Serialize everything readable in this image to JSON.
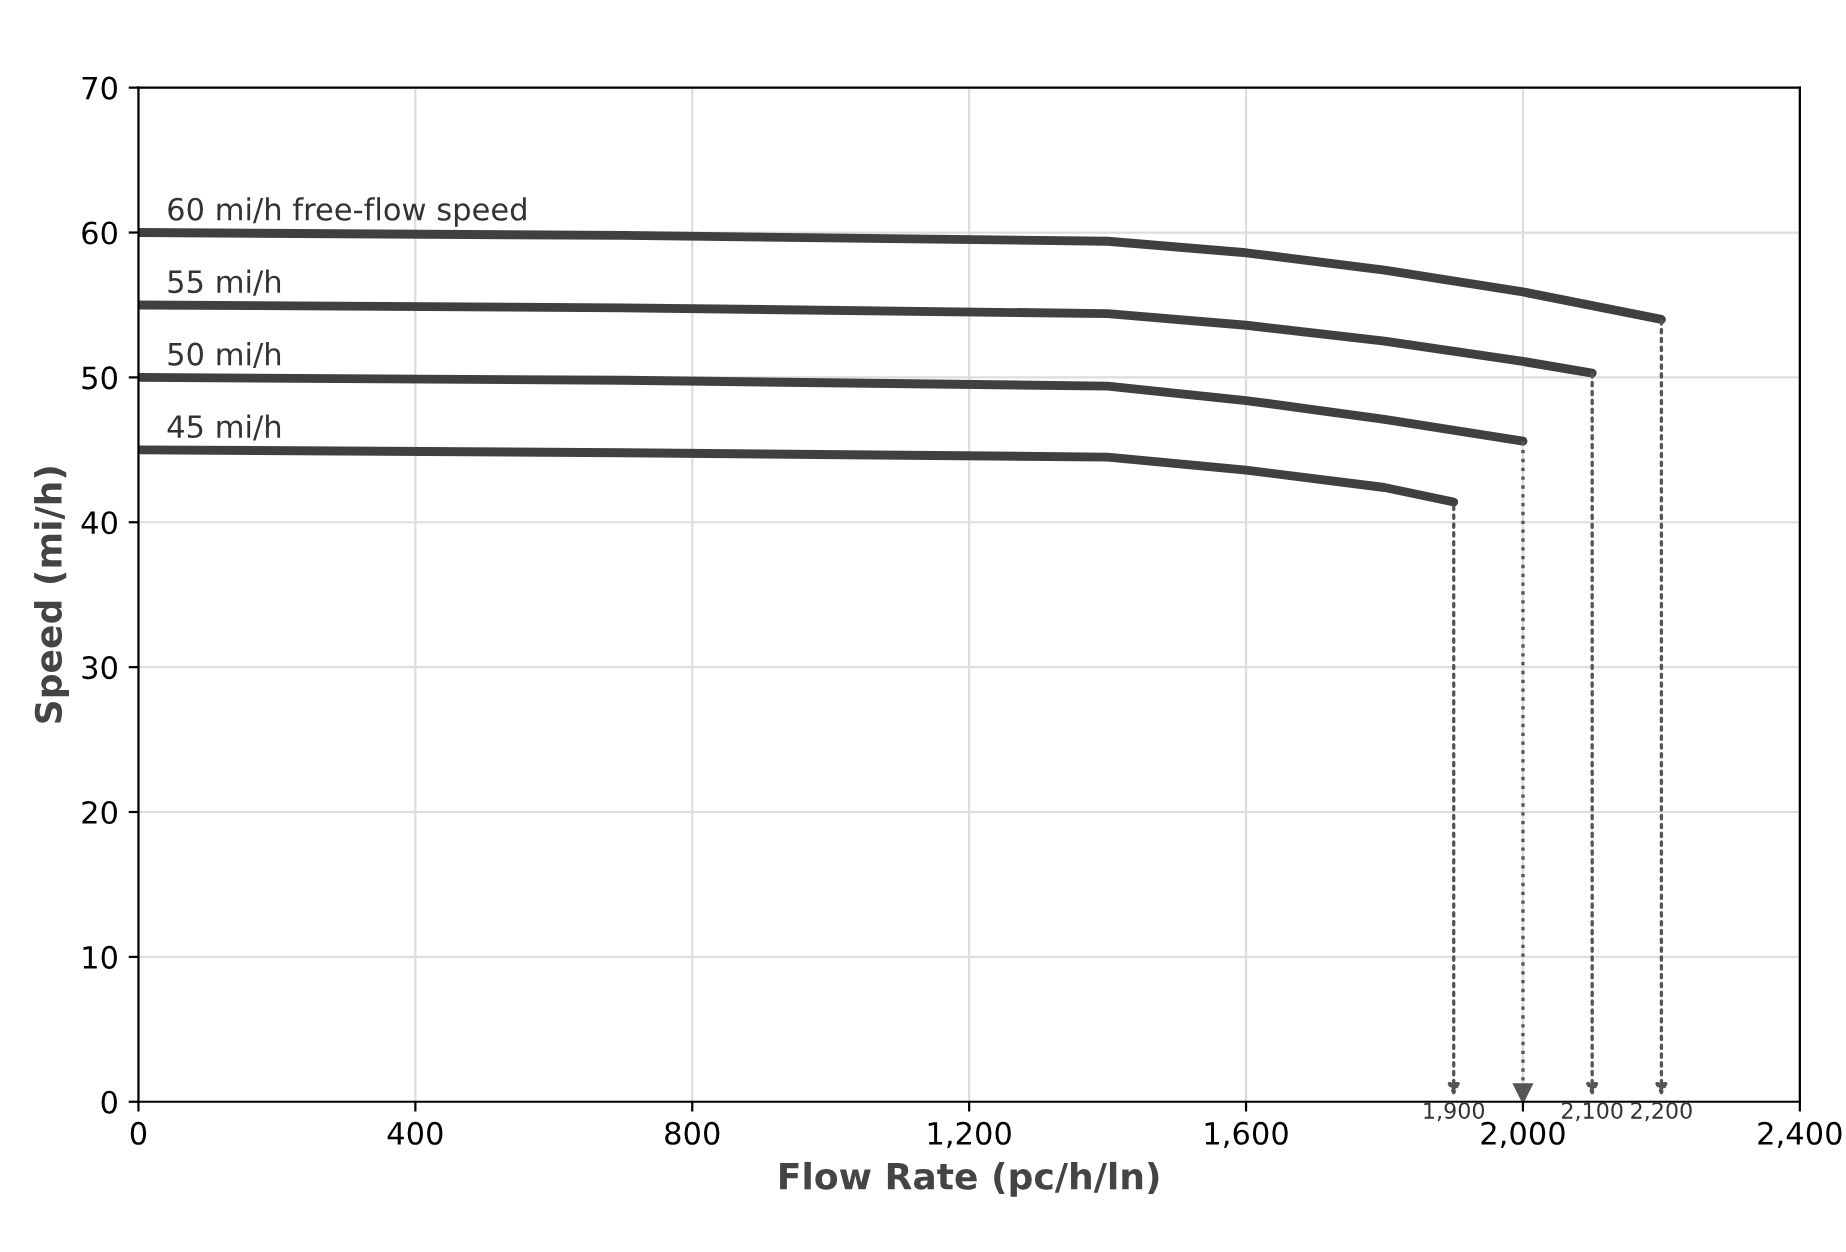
{
  "chart_data": {
    "type": "line",
    "xlabel": "Flow Rate (pc/h/ln)",
    "ylabel": "Speed (mi/h)",
    "series": [
      {
        "name": "60 mi/h free-flow speed",
        "color": "#404040",
        "x": [
          0,
          700,
          1400,
          1600,
          1800,
          2000,
          2200
        ],
        "values": [
          60,
          59.8,
          59.4,
          58.6,
          57.4,
          55.9,
          54.0
        ]
      },
      {
        "name": "55 mi/h",
        "color": "#404040",
        "x": [
          0,
          700,
          1400,
          1600,
          1800,
          2000,
          2100
        ],
        "values": [
          55,
          54.8,
          54.4,
          53.6,
          52.5,
          51.1,
          50.3
        ]
      },
      {
        "name": "50 mi/h",
        "color": "#404040",
        "x": [
          0,
          700,
          1400,
          1600,
          1800,
          2000
        ],
        "values": [
          50,
          49.8,
          49.4,
          48.4,
          47.1,
          45.6
        ]
      },
      {
        "name": "45 mi/h",
        "color": "#404040",
        "x": [
          0,
          700,
          1400,
          1600,
          1800,
          1900
        ],
        "values": [
          45,
          44.8,
          44.5,
          43.6,
          42.4,
          41.4
        ]
      }
    ],
    "annotations": [
      {
        "text": "1,900",
        "x": 1900,
        "y": 41.4
      },
      {
        "text": "2,100",
        "x": 2100,
        "y": 50.3
      },
      {
        "text": "2,200",
        "x": 2200,
        "y": 54.0
      }
    ],
    "xlim": [
      0,
      2400
    ],
    "ylim": [
      0,
      70
    ],
    "xticks": [
      0,
      400,
      800,
      {
        "value": 1200,
        "label": "1,200"
      },
      {
        "value": 1600,
        "label": "1,600"
      },
      {
        "value": 2000,
        "label": "2,000"
      },
      {
        "value": 2400,
        "label": "2,400"
      }
    ],
    "yticks": [
      0,
      10,
      20,
      30,
      40,
      50,
      60,
      70
    ],
    "grid": true,
    "legend": false,
    "marker": "none",
    "line_style": "solid"
  }
}
